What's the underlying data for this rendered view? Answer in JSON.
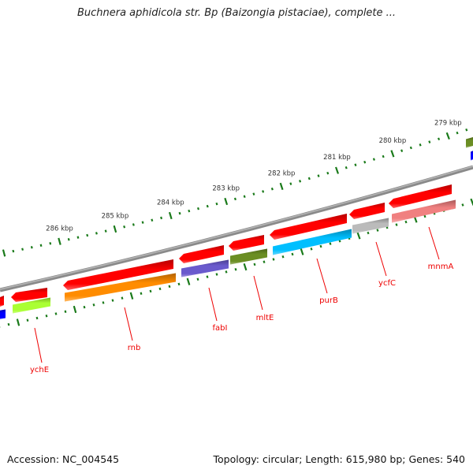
{
  "title": "Buchnera aphidicola str. Bp (Baizongia pistaciae), complete ...",
  "footer": {
    "accession": "Accession: NC_004545",
    "topology": "Topology: circular; Length: 615,980 bp; Genes: 540"
  },
  "tick_labels": [
    "286 kbp",
    "285 kbp",
    "284 kbp",
    "283 kbp",
    "282 kbp",
    "281 kbp",
    "280 kbp",
    "279 kbp"
  ],
  "gene_labels": [
    "ychE",
    "rnb",
    "fabI",
    "mltE",
    "purB",
    "ycfC",
    "mnmA"
  ],
  "colors": {
    "cds": "#ff0000",
    "backbone": "#808080",
    "ticks": "#1a7a1a",
    "labels": "#ee0000",
    "cog": [
      "#0000ff",
      "#aaff33",
      "#ff8c00",
      "#6a5acd",
      "#6b8e23",
      "#00bfff",
      "#bbbbbb",
      "#f08080"
    ]
  }
}
